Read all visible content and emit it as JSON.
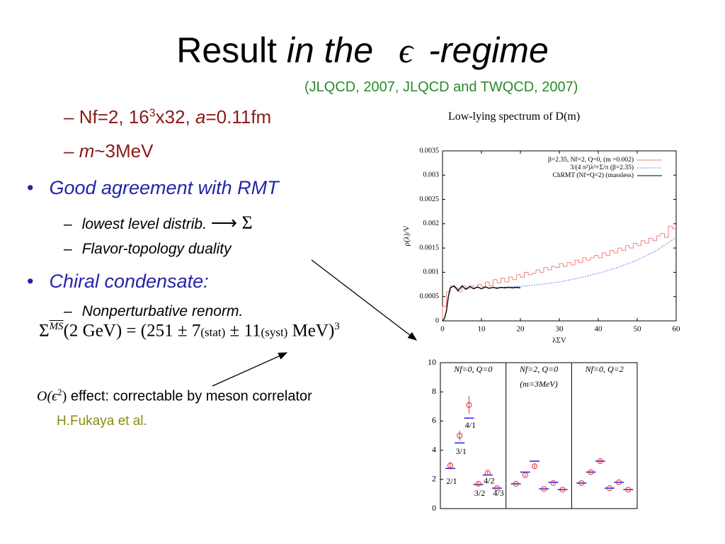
{
  "title": {
    "plain": "Result",
    "italic": "in the",
    "symbol": "ϵ",
    "suffix": "-regime"
  },
  "citation": "(JLQCD, 2007, JLQCD and TWQCD, 2007)",
  "params": [
    {
      "marker": "–",
      "parts": [
        "Nf=2, 16",
        "3",
        "x32, ",
        "a",
        "=0.11fm"
      ]
    },
    {
      "marker": "–",
      "parts": [
        "m",
        "~3MeV"
      ]
    }
  ],
  "bullets": [
    {
      "marker": "•",
      "text": "Good agreement with RMT",
      "sub": [
        {
          "marker": "–",
          "text": "lowest level distrib.",
          "symbol": "⟶ Σ"
        },
        {
          "marker": "–",
          "text": "Flavor-topology duality"
        }
      ]
    },
    {
      "marker": "•",
      "text": "Chiral condensate:",
      "sub": [
        {
          "marker": "–",
          "text": "Nonperturbative renorm."
        }
      ]
    }
  ],
  "formula": {
    "sigma": "Σ",
    "sup": "MS",
    "rest": "(2 GeV) = (251 ± 7",
    "stat": "(stat)",
    "mid": " ± 11",
    "syst": "(syst)",
    "end": " MeV)",
    "pow": "3"
  },
  "note": {
    "symbol": "O(ϵ",
    "sup": "2",
    "close": ")",
    "text": "effect: correctable by meson correlator",
    "author": "H.Fukaya et al."
  },
  "chart_data": [
    {
      "type": "line",
      "title": "Low-lying spectrum of D(m)",
      "x_label": "λΣV",
      "y_label": "ρ(λ)/V",
      "xlim": [
        0,
        60
      ],
      "xticks": [
        0,
        10,
        20,
        30,
        40,
        50,
        60
      ],
      "ylim": [
        0,
        0.0035
      ],
      "yticks": [
        0,
        0.0005,
        0.001,
        0.0015,
        0.002,
        0.0025,
        0.003,
        0.0035
      ],
      "series": [
        {
          "name": "β=2.35, Nf=2, Q=0, (m =0.002)",
          "color": "#f08080",
          "style": "step",
          "bins": [
            0,
            1,
            2,
            3,
            4,
            5,
            6,
            7,
            8,
            9,
            10,
            11,
            12,
            13,
            14,
            15,
            16,
            17,
            18,
            19,
            20,
            21,
            22,
            23,
            24,
            25,
            26,
            27,
            28,
            29,
            30,
            31,
            32,
            33,
            34,
            35,
            36,
            37,
            38,
            39,
            40,
            41,
            42,
            43,
            44,
            45,
            46,
            47,
            48,
            49,
            50,
            51,
            52,
            53,
            54,
            55,
            56,
            57,
            58,
            59,
            60
          ],
          "values": [
            0.0003,
            0.0006,
            0.00072,
            0.00068,
            0.0006,
            0.00072,
            0.00066,
            0.00072,
            0.00068,
            0.00075,
            0.0007,
            0.0008,
            0.00072,
            0.00085,
            0.00078,
            0.00088,
            0.0008,
            0.0009,
            0.00085,
            0.00095,
            0.0009,
            0.001,
            0.00095,
            0.00098,
            0.00105,
            0.001,
            0.0011,
            0.00105,
            0.00112,
            0.0011,
            0.00118,
            0.00112,
            0.0012,
            0.00115,
            0.00125,
            0.0012,
            0.0013,
            0.00125,
            0.0013,
            0.00135,
            0.0013,
            0.0014,
            0.00135,
            0.00145,
            0.0014,
            0.0015,
            0.00145,
            0.00155,
            0.0015,
            0.0016,
            0.00155,
            0.00165,
            0.0016,
            0.0017,
            0.00165,
            0.00175,
            0.0018,
            0.00172,
            0.00195,
            0.0019
          ]
        },
        {
          "name": "3/(4 π²)λ³+Σ/π (β=2.35)",
          "color": "#4060ff",
          "style": "dotted",
          "x": [
            12,
            20,
            25,
            30,
            35,
            40,
            45,
            50,
            55,
            60
          ],
          "values": [
            0.00068,
            0.00071,
            0.00075,
            0.0008,
            0.00088,
            0.00098,
            0.0011,
            0.00125,
            0.00145,
            0.00172
          ]
        },
        {
          "name": "ChRMT (Nf+Q=2) (massless)",
          "color": "#000000",
          "style": "solid",
          "x": [
            0,
            0.5,
            1,
            1.5,
            2,
            3,
            4,
            5,
            6,
            7,
            8,
            9,
            10,
            11,
            12,
            13,
            14,
            15,
            16,
            17,
            18,
            19,
            20
          ],
          "values": [
            0,
            5e-05,
            0.0002,
            0.0005,
            0.00068,
            0.00072,
            0.00062,
            0.00072,
            0.00065,
            0.00071,
            0.00066,
            0.0007,
            0.00066,
            0.0007,
            0.00067,
            0.00069,
            0.00067,
            0.00069,
            0.00068,
            0.00069,
            0.00068,
            0.00069,
            0.00068
          ]
        }
      ]
    },
    {
      "type": "errorbar",
      "ylim": [
        0,
        10
      ],
      "yticks": [
        0,
        2,
        4,
        6,
        8,
        10
      ],
      "categories": [
        "2/1",
        "3/1",
        "4/1",
        "3/2",
        "4/2",
        "4/3"
      ],
      "data_color": "#e03030",
      "theory_color": "#2020ff",
      "panels": [
        {
          "title": "Nf=0, Q=0",
          "values": [
            2.95,
            5.0,
            7.1,
            1.7,
            2.45,
            1.4
          ],
          "errors": [
            0.25,
            0.35,
            0.6,
            0.1,
            0.12,
            0.08
          ],
          "theory": [
            2.75,
            4.5,
            6.2,
            1.65,
            2.3,
            1.4
          ]
        },
        {
          "title": "Nf=2, Q=0",
          "note": "(m=3MeV)",
          "values": [
            1.7,
            2.3,
            2.9,
            1.35,
            1.75,
            1.3
          ],
          "errors": [
            0.08,
            0.1,
            0.12,
            0.06,
            0.07,
            0.06
          ],
          "theory": [
            1.7,
            2.5,
            3.25,
            1.35,
            1.8,
            1.3
          ]
        },
        {
          "title": "Nf=0, Q=2",
          "values": [
            1.75,
            2.5,
            3.25,
            1.4,
            1.8,
            1.3
          ],
          "errors": [
            0.07,
            0.08,
            0.1,
            0.06,
            0.06,
            0.05
          ],
          "theory": [
            1.75,
            2.5,
            3.25,
            1.4,
            1.8,
            1.3
          ]
        }
      ]
    }
  ]
}
